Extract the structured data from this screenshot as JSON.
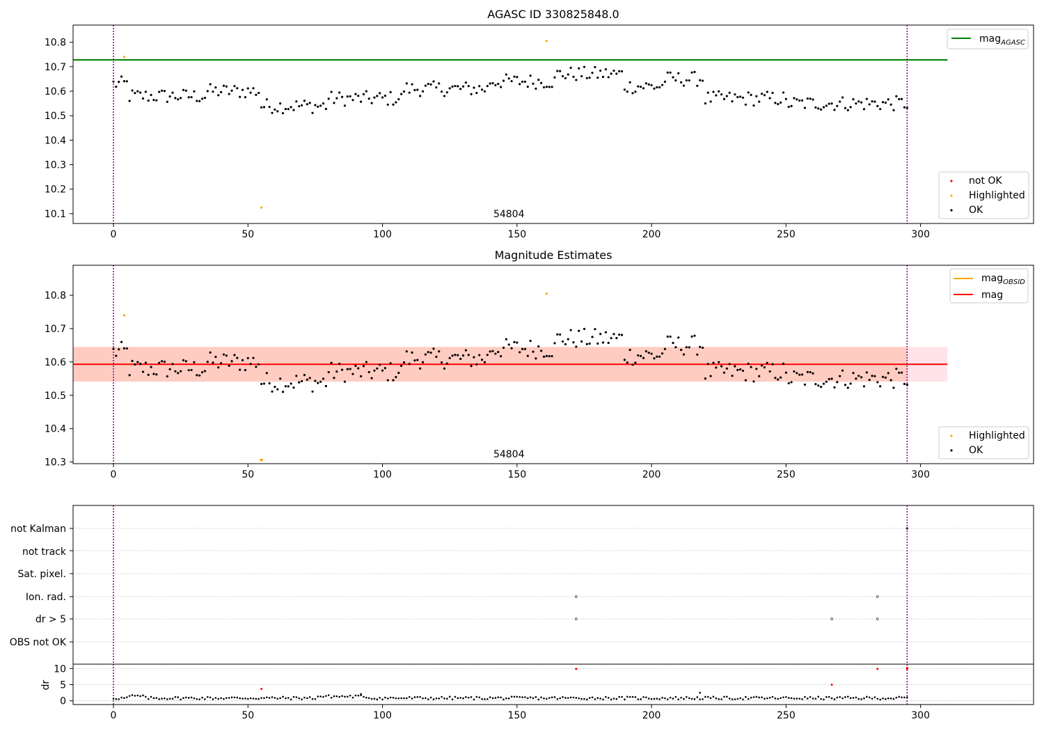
{
  "chart_data": [
    {
      "type": "scatter",
      "title": "AGASC ID 330825848.0",
      "xlim": [
        -15,
        342
      ],
      "ylim": [
        10.06,
        10.87
      ],
      "xticks": [
        0,
        50,
        100,
        150,
        200,
        250,
        300
      ],
      "yticks": [
        10.1,
        10.2,
        10.3,
        10.4,
        10.5,
        10.6,
        10.7,
        10.8
      ],
      "obsid_label": {
        "text": "54804",
        "x": 147
      },
      "vlines": [
        0,
        295
      ],
      "hlines": [
        {
          "name": "mag_AGASC",
          "label_main": "mag",
          "label_sub": "AGASC",
          "y": 10.728,
          "color": "#008000",
          "xmax": 310
        }
      ],
      "legend": {
        "lines": [
          {
            "label_main": "mag",
            "label_sub": "AGASC",
            "color": "#008000"
          }
        ],
        "markers": [
          {
            "label": "not OK",
            "color": "#ff0000"
          },
          {
            "label": "Highlighted",
            "color": "#ffa500"
          },
          {
            "label": "OK",
            "color": "#000000"
          }
        ]
      },
      "highlighted": [
        [
          4,
          10.74
        ],
        [
          161,
          10.805
        ],
        [
          55,
          10.125
        ]
      ]
    },
    {
      "type": "scatter",
      "title": "Magnitude Estimates",
      "xlim": [
        -15,
        342
      ],
      "ylim": [
        10.295,
        10.89
      ],
      "xticks": [
        0,
        50,
        100,
        150,
        200,
        250,
        300
      ],
      "yticks": [
        10.3,
        10.4,
        10.5,
        10.6,
        10.7,
        10.8
      ],
      "obsid_label": {
        "text": "54804",
        "x": 147
      },
      "vlines": [
        0,
        295
      ],
      "hlines": [
        {
          "name": "mag",
          "label_main": "mag",
          "y": 10.593,
          "color": "#ff0000",
          "xmax": 310
        }
      ],
      "bands": [
        {
          "ymin": 10.541,
          "ymax": 10.645,
          "color": "#ffc0cb",
          "opacity": 0.45,
          "xmin": -15,
          "xmax": 310
        },
        {
          "ymin": 10.541,
          "ymax": 10.645,
          "color": "#ffa07a",
          "opacity": 0.35,
          "xmin": -15,
          "xmax": 295
        }
      ],
      "legend": {
        "lines": [
          {
            "label_main": "mag",
            "label_sub": "OBSID",
            "color": "#ffa500"
          },
          {
            "label_main": "mag",
            "color": "#ff0000"
          }
        ],
        "markers": [
          {
            "label": "Highlighted",
            "color": "#ffa500"
          },
          {
            "label": "OK",
            "color": "#000000"
          }
        ]
      },
      "highlighted": [
        [
          4,
          10.74
        ],
        [
          161,
          10.805
        ],
        [
          55,
          10.3
        ]
      ]
    },
    {
      "type": "scatter",
      "xlim": [
        -15,
        342
      ],
      "xticks": [
        0,
        50,
        100,
        150,
        200,
        250,
        300
      ],
      "vlines": [
        0,
        295
      ],
      "flag_labels": [
        "not Kalman",
        "not track",
        "Sat. pixel.",
        "Ion. rad.",
        "dr > 5",
        "OBS not OK"
      ],
      "flag_points": [
        {
          "flag": "Ion. rad.",
          "x": [
            172,
            284
          ]
        },
        {
          "flag": "dr > 5",
          "x": [
            172,
            267,
            284
          ]
        },
        {
          "flag": "not Kalman",
          "x": [
            295
          ]
        }
      ],
      "dr": {
        "ylabel": "dr",
        "ylim": [
          -0.5,
          10.7
        ],
        "yticks": [
          0,
          5,
          10
        ],
        "threshold": 5,
        "not_ok": [
          [
            55,
            3.7
          ],
          [
            172,
            9.9
          ],
          [
            267,
            5.0
          ],
          [
            284,
            9.9
          ],
          [
            295,
            9.9
          ],
          [
            295,
            10.2
          ]
        ],
        "outliers": [
          [
            92,
            2.1
          ],
          [
            218,
            2.5
          ]
        ]
      }
    }
  ],
  "colors": {
    "ok": "#000000",
    "not_ok": "#ff0000",
    "highlighted": "#ffa500",
    "vline": "#800080",
    "grid": "#b0b0b0"
  }
}
